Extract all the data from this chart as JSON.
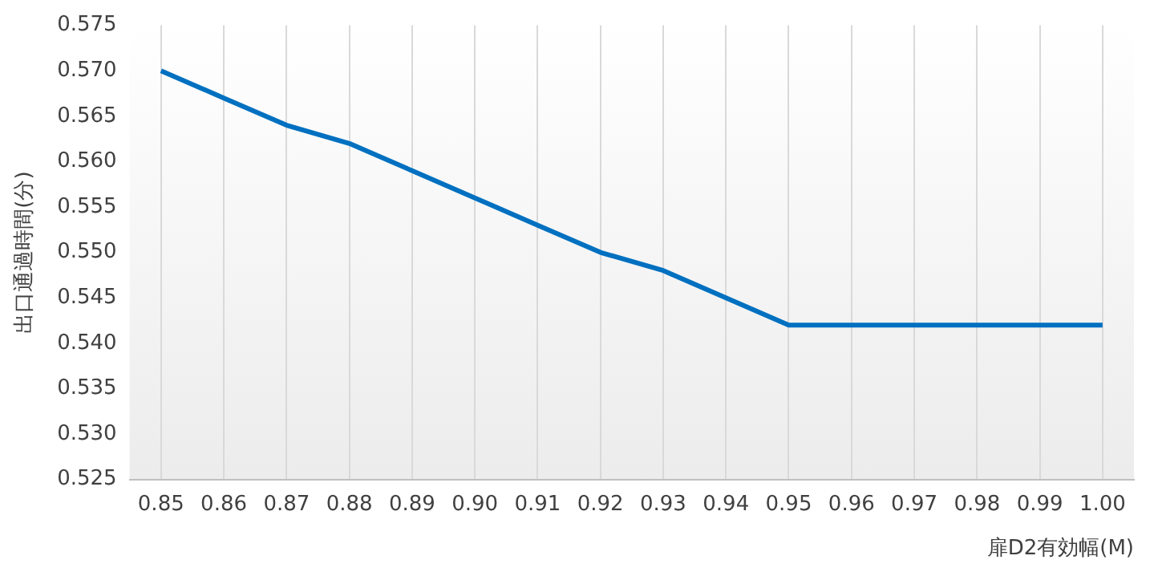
{
  "chart_data": {
    "type": "line",
    "xlabel": "扉D2有効幅(M)",
    "ylabel": "出口通過時間(分)",
    "categories": [
      "0.85",
      "0.86",
      "0.87",
      "0.88",
      "0.89",
      "0.90",
      "0.91",
      "0.92",
      "0.93",
      "0.94",
      "0.95",
      "0.96",
      "0.97",
      "0.98",
      "0.99",
      "1.00"
    ],
    "series": [
      {
        "color": "#0070c0",
        "values": [
          0.57,
          0.567,
          0.564,
          0.562,
          0.559,
          0.556,
          0.553,
          0.55,
          0.548,
          0.545,
          0.542,
          0.542,
          0.542,
          0.542,
          0.542,
          0.542
        ]
      }
    ],
    "ylim": [
      0.525,
      0.575
    ],
    "yticks": [
      0.525,
      {
        "value": 0.53,
        "label": "0.530"
      },
      0.535,
      {
        "value": 0.54,
        "label": "0.540"
      },
      0.545,
      {
        "value": 0.55,
        "label": "0.550"
      },
      0.555,
      {
        "value": 0.56,
        "label": "0.560"
      },
      0.565,
      {
        "value": 0.57,
        "label": "0.570"
      },
      0.575
    ],
    "grid": "x",
    "legend": false,
    "marker": "none",
    "line_style": "solid"
  }
}
